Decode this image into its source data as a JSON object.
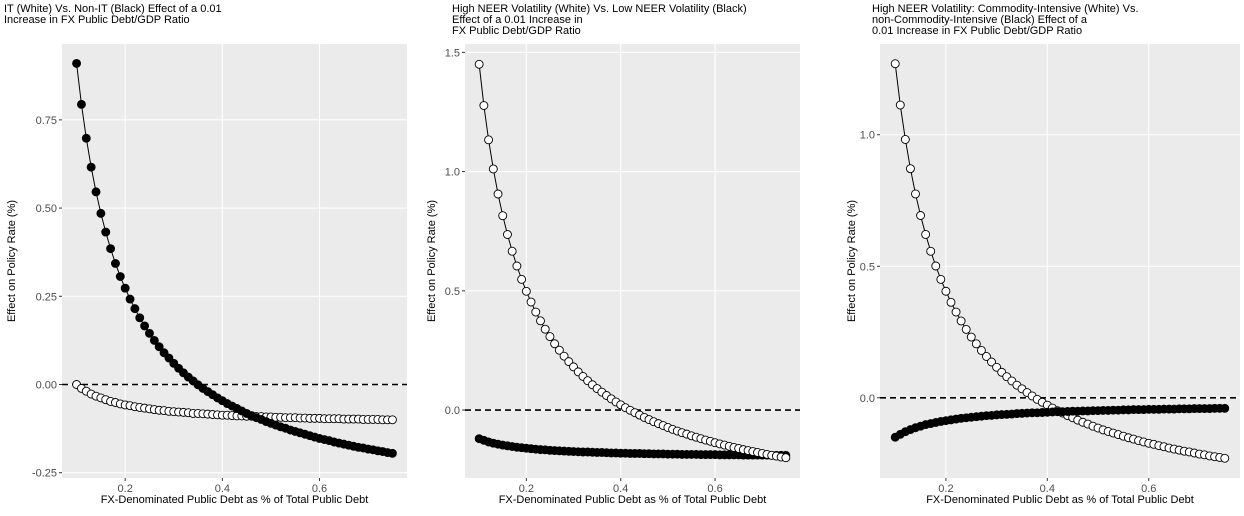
{
  "chart_data": [
    {
      "type": "line",
      "title": [
        "IT (White) Vs. Non-IT (Black) Effect of a 0.01",
        " Increase in FX Public Debt/GDP Ratio"
      ],
      "x_label": "FX-Denominated Public Debt as % of Total Public Debt",
      "y_label": "Effect on Policy Rate (%)",
      "x": [
        0.1,
        0.11,
        0.12,
        0.13,
        0.14,
        0.15,
        0.16,
        0.17,
        0.18,
        0.19,
        0.2,
        0.21,
        0.22,
        0.23,
        0.24,
        0.25,
        0.26,
        0.27,
        0.28,
        0.29,
        0.3,
        0.31,
        0.32,
        0.33,
        0.34,
        0.35,
        0.36,
        0.37,
        0.38,
        0.39,
        0.4,
        0.41,
        0.42,
        0.43,
        0.44,
        0.45,
        0.46,
        0.47,
        0.48,
        0.49,
        0.5,
        0.51,
        0.52,
        0.53,
        0.54,
        0.55,
        0.56,
        0.57,
        0.58,
        0.59,
        0.6,
        0.61,
        0.62,
        0.63,
        0.64,
        0.65,
        0.66,
        0.67,
        0.68,
        0.69,
        0.7,
        0.71,
        0.72,
        0.73,
        0.74,
        0.75
      ],
      "series": [
        {
          "color": "#ffffff",
          "values": [
            0.0,
            -0.011,
            -0.019,
            -0.027,
            -0.033,
            -0.038,
            -0.043,
            -0.048,
            -0.051,
            -0.055,
            -0.058,
            -0.06,
            -0.063,
            -0.065,
            -0.067,
            -0.069,
            -0.071,
            -0.073,
            -0.074,
            -0.076,
            -0.077,
            -0.078,
            -0.079,
            -0.08,
            -0.082,
            -0.082,
            -0.083,
            -0.084,
            -0.085,
            -0.086,
            -0.087,
            -0.087,
            -0.088,
            -0.089,
            -0.089,
            -0.09,
            -0.09,
            -0.091,
            -0.091,
            -0.092,
            -0.092,
            -0.093,
            -0.093,
            -0.094,
            -0.094,
            -0.094,
            -0.095,
            -0.095,
            -0.096,
            -0.096,
            -0.096,
            -0.097,
            -0.097,
            -0.097,
            -0.097,
            -0.098,
            -0.098,
            -0.098,
            -0.098,
            -0.099,
            -0.099,
            -0.099,
            -0.099,
            -0.1,
            -0.1,
            -0.1
          ]
        },
        {
          "color": "#000000",
          "values": [
            0.91,
            0.794,
            0.698,
            0.616,
            0.546,
            0.485,
            0.432,
            0.385,
            0.343,
            0.306,
            0.273,
            0.242,
            0.215,
            0.189,
            0.166,
            0.145,
            0.125,
            0.107,
            0.09,
            0.075,
            0.06,
            0.046,
            0.033,
            0.021,
            0.01,
            -0.001,
            -0.011,
            -0.02,
            -0.029,
            -0.038,
            -0.046,
            -0.054,
            -0.061,
            -0.068,
            -0.075,
            -0.082,
            -0.088,
            -0.094,
            -0.099,
            -0.105,
            -0.11,
            -0.115,
            -0.12,
            -0.124,
            -0.129,
            -0.133,
            -0.137,
            -0.141,
            -0.145,
            -0.149,
            -0.153,
            -0.156,
            -0.159,
            -0.163,
            -0.166,
            -0.169,
            -0.172,
            -0.175,
            -0.178,
            -0.18,
            -0.183,
            -0.185,
            -0.188,
            -0.19,
            -0.193,
            -0.195
          ]
        }
      ],
      "hline": 0,
      "xlim": [
        0.07,
        0.78
      ],
      "xticks": [
        0.2,
        0.4,
        0.6
      ],
      "ylim": [
        -0.265,
        0.965
      ],
      "yticks": [
        -0.25,
        {
          "value": 0,
          "label": "0.00"
        },
        0.25,
        {
          "value": 0.5,
          "label": "0.50"
        },
        0.75
      ],
      "grid": true
    },
    {
      "type": "line",
      "title": [
        "High NEER Volatility (White) Vs. Low NEER Volatility (Black)",
        " Effect of a 0.01 Increase in",
        " FX Public Debt/GDP Ratio"
      ],
      "x_label": "FX-Denominated Public Debt as % of Total Public Debt",
      "y_label": "Effect on Policy Rate (%)",
      "x": [
        0.1,
        0.11,
        0.12,
        0.13,
        0.14,
        0.15,
        0.16,
        0.17,
        0.18,
        0.19,
        0.2,
        0.21,
        0.22,
        0.23,
        0.24,
        0.25,
        0.26,
        0.27,
        0.28,
        0.29,
        0.3,
        0.31,
        0.32,
        0.33,
        0.34,
        0.35,
        0.36,
        0.37,
        0.38,
        0.39,
        0.4,
        0.41,
        0.42,
        0.43,
        0.44,
        0.45,
        0.46,
        0.47,
        0.48,
        0.49,
        0.5,
        0.51,
        0.52,
        0.53,
        0.54,
        0.55,
        0.56,
        0.57,
        0.58,
        0.59,
        0.6,
        0.61,
        0.62,
        0.63,
        0.64,
        0.65,
        0.66,
        0.67,
        0.68,
        0.69,
        0.7,
        0.71,
        0.72,
        0.73,
        0.74,
        0.75
      ],
      "series": [
        {
          "color": "#000000",
          "values": [
            -0.12,
            -0.127,
            -0.134,
            -0.139,
            -0.143,
            -0.147,
            -0.15,
            -0.153,
            -0.156,
            -0.158,
            -0.16,
            -0.162,
            -0.164,
            -0.166,
            -0.167,
            -0.169,
            -0.17,
            -0.171,
            -0.172,
            -0.173,
            -0.174,
            -0.175,
            -0.176,
            -0.176,
            -0.177,
            -0.178,
            -0.178,
            -0.179,
            -0.18,
            -0.18,
            -0.181,
            -0.181,
            -0.182,
            -0.182,
            -0.182,
            -0.183,
            -0.183,
            -0.184,
            -0.184,
            -0.184,
            -0.185,
            -0.185,
            -0.185,
            -0.186,
            -0.186,
            -0.186,
            -0.186,
            -0.187,
            -0.187,
            -0.187,
            -0.187,
            -0.188,
            -0.188,
            -0.188,
            -0.188,
            -0.188,
            -0.189,
            -0.189,
            -0.189,
            -0.189,
            -0.189,
            -0.189,
            -0.19,
            -0.19,
            -0.19,
            -0.19
          ]
        },
        {
          "color": "#ffffff",
          "values": [
            1.45,
            1.277,
            1.133,
            1.011,
            0.906,
            0.815,
            0.736,
            0.666,
            0.604,
            0.548,
            0.498,
            0.453,
            0.411,
            0.374,
            0.339,
            0.308,
            0.278,
            0.251,
            0.226,
            0.203,
            0.181,
            0.16,
            0.141,
            0.123,
            0.106,
            0.09,
            0.075,
            0.061,
            0.047,
            0.034,
            0.022,
            0.01,
            -0.001,
            -0.011,
            -0.021,
            -0.031,
            -0.04,
            -0.049,
            -0.057,
            -0.065,
            -0.073,
            -0.081,
            -0.088,
            -0.095,
            -0.101,
            -0.108,
            -0.114,
            -0.12,
            -0.126,
            -0.131,
            -0.137,
            -0.142,
            -0.147,
            -0.152,
            -0.157,
            -0.161,
            -0.166,
            -0.17,
            -0.174,
            -0.178,
            -0.182,
            -0.186,
            -0.19,
            -0.193,
            -0.197,
            -0.2
          ]
        }
      ],
      "hline": 0,
      "xlim": [
        0.07,
        0.78
      ],
      "xticks": [
        0.2,
        0.4,
        0.6
      ],
      "ylim": [
        -0.285,
        1.535
      ],
      "yticks": [
        {
          "value": 0,
          "label": "0.0"
        },
        0.5,
        {
          "value": 1,
          "label": "1.0"
        },
        1.5
      ],
      "grid": true
    },
    {
      "type": "line",
      "title": [
        "High NEER Volatility: Commodity-Intensive (White) Vs.",
        " non-Commodity-Intensive (Black) Effect of a",
        " 0.01 Increase in FX Public Debt/GDP Ratio"
      ],
      "x_label": "FX-Denominated Public Debt as % of Total Public Debt",
      "y_label": "Effect on Policy Rate (%)",
      "x": [
        0.1,
        0.11,
        0.12,
        0.13,
        0.14,
        0.15,
        0.16,
        0.17,
        0.18,
        0.19,
        0.2,
        0.21,
        0.22,
        0.23,
        0.24,
        0.25,
        0.26,
        0.27,
        0.28,
        0.29,
        0.3,
        0.31,
        0.32,
        0.33,
        0.34,
        0.35,
        0.36,
        0.37,
        0.38,
        0.39,
        0.4,
        0.41,
        0.42,
        0.43,
        0.44,
        0.45,
        0.46,
        0.47,
        0.48,
        0.49,
        0.5,
        0.51,
        0.52,
        0.53,
        0.54,
        0.55,
        0.56,
        0.57,
        0.58,
        0.59,
        0.6,
        0.61,
        0.62,
        0.63,
        0.64,
        0.65,
        0.66,
        0.67,
        0.68,
        0.69,
        0.7,
        0.71,
        0.72,
        0.73,
        0.74,
        0.75
      ],
      "series": [
        {
          "color": "#ffffff",
          "values": [
            1.27,
            1.113,
            0.982,
            0.871,
            0.775,
            0.693,
            0.621,
            0.557,
            0.501,
            0.45,
            0.405,
            0.363,
            0.326,
            0.292,
            0.26,
            0.231,
            0.205,
            0.18,
            0.157,
            0.136,
            0.116,
            0.097,
            0.08,
            0.064,
            0.048,
            0.034,
            0.02,
            0.007,
            -0.006,
            -0.017,
            -0.028,
            -0.039,
            -0.049,
            -0.058,
            -0.068,
            -0.076,
            -0.085,
            -0.093,
            -0.1,
            -0.108,
            -0.115,
            -0.122,
            -0.128,
            -0.134,
            -0.14,
            -0.146,
            -0.152,
            -0.157,
            -0.163,
            -0.168,
            -0.173,
            -0.177,
            -0.182,
            -0.186,
            -0.191,
            -0.195,
            -0.199,
            -0.203,
            -0.206,
            -0.21,
            -0.214,
            -0.217,
            -0.221,
            -0.224,
            -0.227,
            -0.23
          ]
        },
        {
          "color": "#000000",
          "values": [
            -0.15,
            -0.139,
            -0.129,
            -0.121,
            -0.114,
            -0.108,
            -0.102,
            -0.098,
            -0.094,
            -0.09,
            -0.087,
            -0.084,
            -0.081,
            -0.078,
            -0.076,
            -0.074,
            -0.072,
            -0.07,
            -0.068,
            -0.067,
            -0.065,
            -0.064,
            -0.063,
            -0.062,
            -0.06,
            -0.059,
            -0.058,
            -0.057,
            -0.057,
            -0.056,
            -0.055,
            -0.054,
            -0.053,
            -0.053,
            -0.052,
            -0.051,
            -0.051,
            -0.05,
            -0.05,
            -0.049,
            -0.049,
            -0.048,
            -0.048,
            -0.047,
            -0.047,
            -0.046,
            -0.046,
            -0.045,
            -0.045,
            -0.045,
            -0.044,
            -0.044,
            -0.044,
            -0.043,
            -0.043,
            -0.043,
            -0.042,
            -0.042,
            -0.042,
            -0.041,
            -0.041,
            -0.041,
            -0.041,
            -0.04,
            -0.04,
            -0.04
          ]
        }
      ],
      "hline": 0,
      "xlim": [
        0.07,
        0.78
      ],
      "xticks": [
        0.2,
        0.4,
        0.6
      ],
      "ylim": [
        -0.305,
        1.345
      ],
      "yticks": [
        {
          "value": 0,
          "label": "0.0"
        },
        0.5,
        {
          "value": 1,
          "label": "1.0"
        }
      ],
      "grid": true
    }
  ]
}
